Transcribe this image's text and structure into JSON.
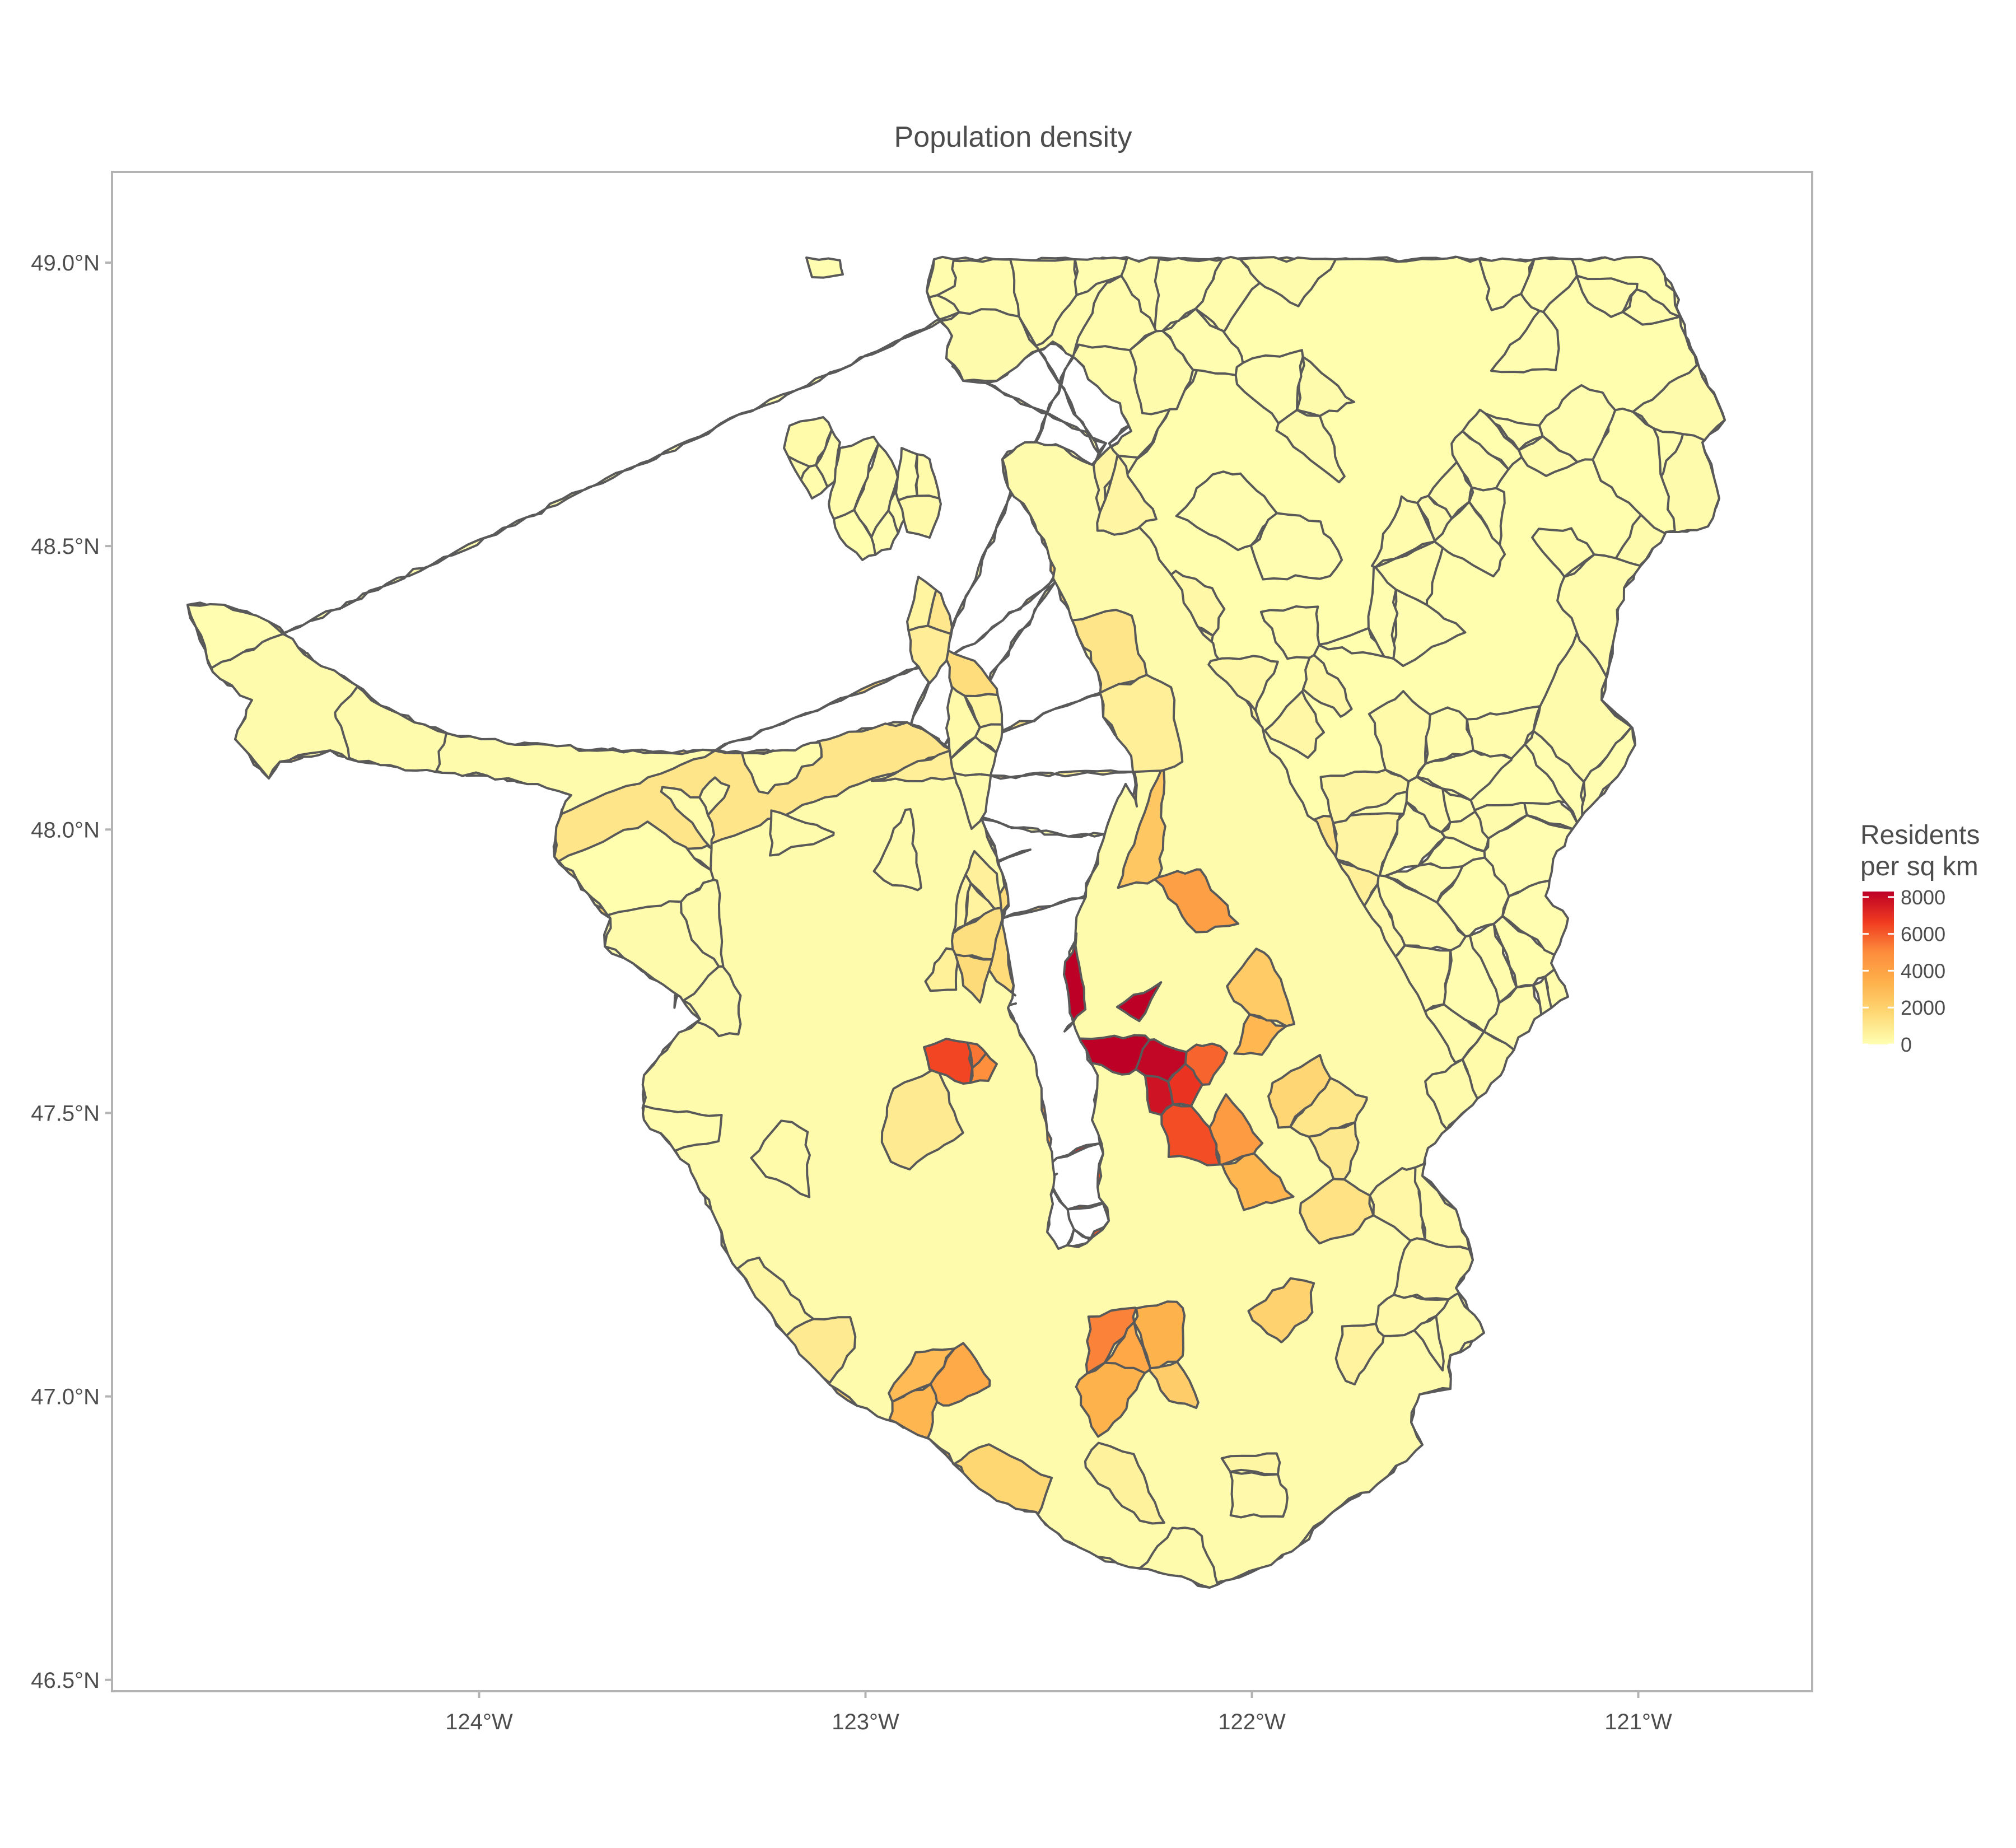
{
  "chart_data": {
    "type": "choropleth",
    "title": "Population density",
    "x_ticks": [
      "124°W",
      "123°W",
      "122°W",
      "121°W"
    ],
    "x_tick_values": [
      -124,
      -123,
      -122,
      -121
    ],
    "y_ticks": [
      "49.0°N",
      "48.5°N",
      "48.0°N",
      "47.5°N",
      "47.0°N",
      "46.5°N"
    ],
    "y_tick_values": [
      49.0,
      48.5,
      48.0,
      47.5,
      47.0,
      46.5
    ],
    "xlim": [
      -124.95,
      -120.55
    ],
    "ylim": [
      46.48,
      49.16
    ],
    "grid": false,
    "legend": {
      "title_lines": [
        "Residents",
        "per sq km"
      ],
      "placement": "right",
      "ticks": [
        "8000",
        "6000",
        "4000",
        "2000",
        "0"
      ],
      "tick_values": [
        8000,
        6000,
        4000,
        2000,
        0
      ],
      "range": [
        0,
        8300
      ],
      "colors": [
        "#ffffb2",
        "#fed976",
        "#feb24c",
        "#fd8d3c",
        "#f03b20",
        "#bd0026"
      ]
    }
  }
}
